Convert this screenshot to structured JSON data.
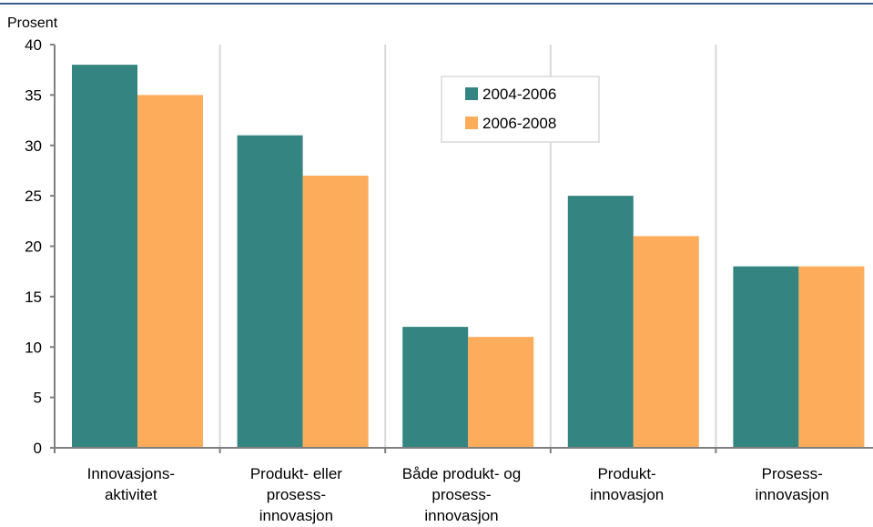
{
  "chart_data": {
    "type": "bar",
    "title": "",
    "ylabel": "Prosent",
    "xlabel": "",
    "ylim": [
      0,
      40
    ],
    "yticks": [
      0,
      5,
      10,
      15,
      20,
      25,
      30,
      35,
      40
    ],
    "grid": "vertical",
    "legend_position": "top-center",
    "categories": [
      [
        "Innovasjons-",
        "aktivitet"
      ],
      [
        "Produkt- eller",
        "prosess-",
        "innovasjon"
      ],
      [
        "Både produkt- og",
        "prosess-",
        "innovasjon"
      ],
      [
        "Produkt-",
        "innovasjon"
      ],
      [
        "Prosess-",
        "innovasjon"
      ]
    ],
    "series": [
      {
        "name": "2004-2006",
        "color": "#348482",
        "values": [
          38,
          31,
          12,
          25,
          18
        ]
      },
      {
        "name": "2006-2008",
        "color": "#FCAC5B",
        "values": [
          35,
          27,
          11,
          21,
          18
        ]
      }
    ]
  },
  "colors": {
    "top_rule": "#3C5A8C",
    "axis": "#7F7F7F",
    "grid": "#D9D9D9"
  }
}
